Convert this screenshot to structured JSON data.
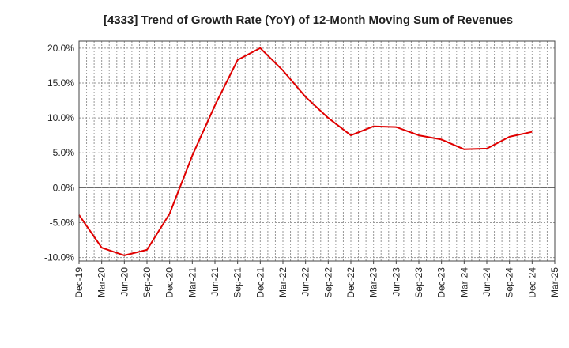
{
  "chart_data": {
    "type": "line",
    "title": "[4333]  Trend of Growth Rate (YoY) of 12-Month Moving Sum of Revenues",
    "xlabel": "",
    "ylabel": "",
    "categories": [
      "Dec-19",
      "Mar-20",
      "Jun-20",
      "Sep-20",
      "Dec-20",
      "Mar-21",
      "Jun-21",
      "Sep-21",
      "Dec-21",
      "Mar-22",
      "Jun-22",
      "Sep-22",
      "Dec-22",
      "Mar-23",
      "Jun-23",
      "Sep-23",
      "Dec-23",
      "Mar-24",
      "Jun-24",
      "Sep-24",
      "Dec-24",
      "Mar-25"
    ],
    "y_tick_labels": [
      "20.0%",
      "15.0%",
      "10.0%",
      "5.0%",
      "0.0%",
      "-5.0%",
      "-10.0%"
    ],
    "y_tick_values": [
      20,
      15,
      10,
      5,
      0,
      -5,
      -10
    ],
    "ylim": [
      -10.5,
      21
    ],
    "grid": true,
    "series": [
      {
        "color": "#e00000",
        "values": [
          -3.9,
          -8.6,
          -9.7,
          -8.9,
          -3.7,
          4.6,
          11.8,
          18.3,
          20.0,
          16.8,
          13.0,
          10.0,
          7.5,
          8.8,
          8.7,
          7.5,
          6.9,
          5.5,
          5.6,
          7.3,
          8.0,
          null
        ]
      }
    ]
  }
}
